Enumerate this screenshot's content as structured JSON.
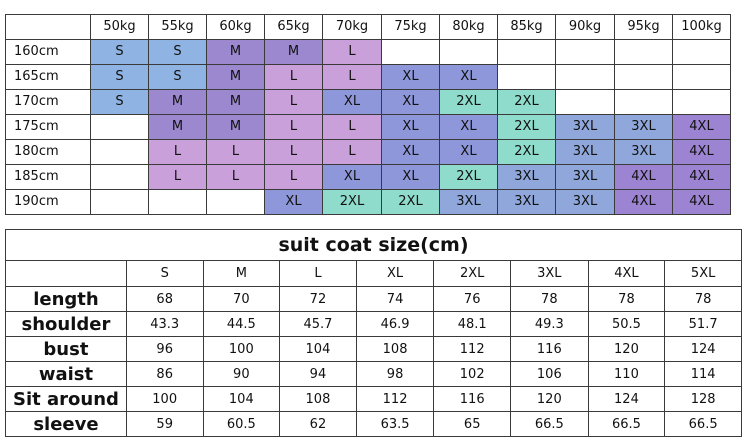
{
  "size_chart": {
    "weights": [
      "50kg",
      "55kg",
      "60kg",
      "65kg",
      "70kg",
      "75kg",
      "80kg",
      "85kg",
      "90kg",
      "95kg",
      "100kg"
    ],
    "rows": [
      {
        "height": "160cm",
        "sizes": [
          "S",
          "S",
          "M",
          "M",
          "L",
          "",
          "",
          "",
          "",
          "",
          ""
        ]
      },
      {
        "height": "165cm",
        "sizes": [
          "S",
          "S",
          "M",
          "L",
          "L",
          "XL",
          "XL",
          "",
          "",
          "",
          ""
        ]
      },
      {
        "height": "170cm",
        "sizes": [
          "S",
          "M",
          "M",
          "L",
          "XL",
          "XL",
          "2XL",
          "2XL",
          "",
          "",
          ""
        ]
      },
      {
        "height": "175cm",
        "sizes": [
          "",
          "M",
          "M",
          "L",
          "L",
          "XL",
          "XL",
          "2XL",
          "3XL",
          "3XL",
          "4XL"
        ]
      },
      {
        "height": "180cm",
        "sizes": [
          "",
          "L",
          "L",
          "L",
          "L",
          "XL",
          "XL",
          "2XL",
          "3XL",
          "3XL",
          "4XL"
        ]
      },
      {
        "height": "185cm",
        "sizes": [
          "",
          "L",
          "L",
          "L",
          "XL",
          "XL",
          "2XL",
          "3XL",
          "3XL",
          "4XL",
          "4XL"
        ]
      },
      {
        "height": "190cm",
        "sizes": [
          "",
          "",
          "",
          "XL",
          "2XL",
          "2XL",
          "3XL",
          "3XL",
          "3XL",
          "4XL",
          "4XL"
        ]
      }
    ],
    "colors": {
      "S": "#8fb3e2",
      "M": "#9b88cf",
      "L": "#c9a0d9",
      "XL": "#8e97d9",
      "2XL": "#8fdccc",
      "3XL": "#8fa7da",
      "4XL": "#9c84d2"
    }
  },
  "coat_table": {
    "title": "suit coat size(cm)",
    "sizes": [
      "S",
      "M",
      "L",
      "XL",
      "2XL",
      "3XL",
      "4XL",
      "5XL"
    ],
    "rows": [
      {
        "label": "length",
        "values": [
          "68",
          "70",
          "72",
          "74",
          "76",
          "78",
          "78",
          "78"
        ]
      },
      {
        "label": "shoulder",
        "values": [
          "43.3",
          "44.5",
          "45.7",
          "46.9",
          "48.1",
          "49.3",
          "50.5",
          "51.7"
        ]
      },
      {
        "label": "bust",
        "values": [
          "96",
          "100",
          "104",
          "108",
          "112",
          "116",
          "120",
          "124"
        ]
      },
      {
        "label": "waist",
        "values": [
          "86",
          "90",
          "94",
          "98",
          "102",
          "106",
          "110",
          "114"
        ]
      },
      {
        "label": "Sit around",
        "values": [
          "100",
          "104",
          "108",
          "112",
          "116",
          "120",
          "124",
          "128"
        ]
      },
      {
        "label": "sleeve",
        "values": [
          "59",
          "60.5",
          "62",
          "63.5",
          "65",
          "66.5",
          "66.5",
          "66.5"
        ]
      }
    ]
  }
}
